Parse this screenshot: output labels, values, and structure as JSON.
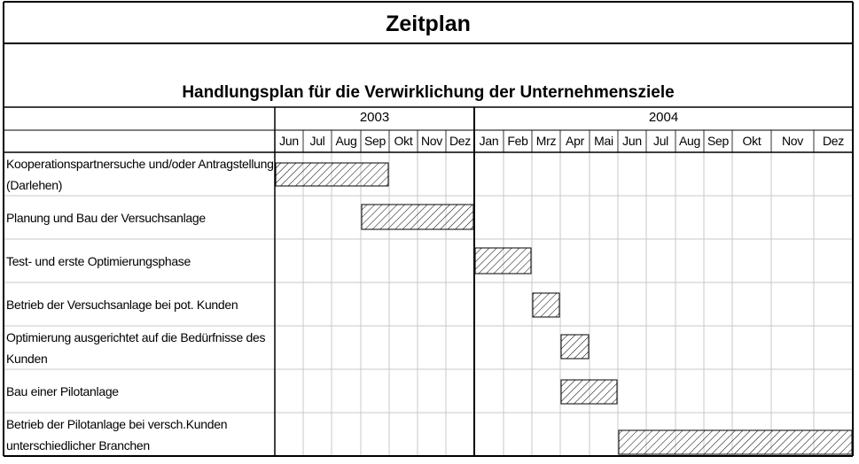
{
  "chart_data": {
    "type": "gantt",
    "title": "Zeitplan",
    "subtitle": "Handlungsplan für die Verwirklichung der Unternehmensziele",
    "years": [
      {
        "label": "2003",
        "months": 7
      },
      {
        "label": "2004",
        "months": 12
      }
    ],
    "months": [
      "Jun",
      "Jul",
      "Aug",
      "Sep",
      "Okt",
      "Nov",
      "Dez",
      "Jan",
      "Feb",
      "Mrz",
      "Apr",
      "Mai",
      "Jun",
      "Jul",
      "Aug",
      "Sep",
      "Okt",
      "Nov",
      "Dez"
    ],
    "tasks": [
      {
        "label": "Kooperationspartnersuche und/oder Antragstellung (Darlehen)",
        "start": "2003-06",
        "end": "2003-09",
        "start_index": 0,
        "end_index": 3
      },
      {
        "label": "Planung und Bau der Versuchsanlage",
        "start": "2003-09",
        "end": "2003-12",
        "start_index": 3,
        "end_index": 6
      },
      {
        "label": "Test- und erste Optimierungsphase",
        "start": "2004-01",
        "end": "2004-02",
        "start_index": 7,
        "end_index": 8
      },
      {
        "label": "Betrieb der Versuchsanlage bei pot. Kunden",
        "start": "2004-03",
        "end": "2004-03",
        "start_index": 9,
        "end_index": 9
      },
      {
        "label": "Optimierung ausgerichtet auf die Bedürfnisse des Kunden",
        "start": "2004-04",
        "end": "2004-04",
        "start_index": 10,
        "end_index": 10
      },
      {
        "label": "Bau einer Pilotanlage",
        "start": "2004-04",
        "end": "2004-05",
        "start_index": 10,
        "end_index": 11
      },
      {
        "label": "Betrieb der Pilotanlage bei versch.Kunden unterschiedlicher Branchen",
        "start": "2004-06",
        "end": "2004-12",
        "start_index": 12,
        "end_index": 18
      }
    ]
  }
}
